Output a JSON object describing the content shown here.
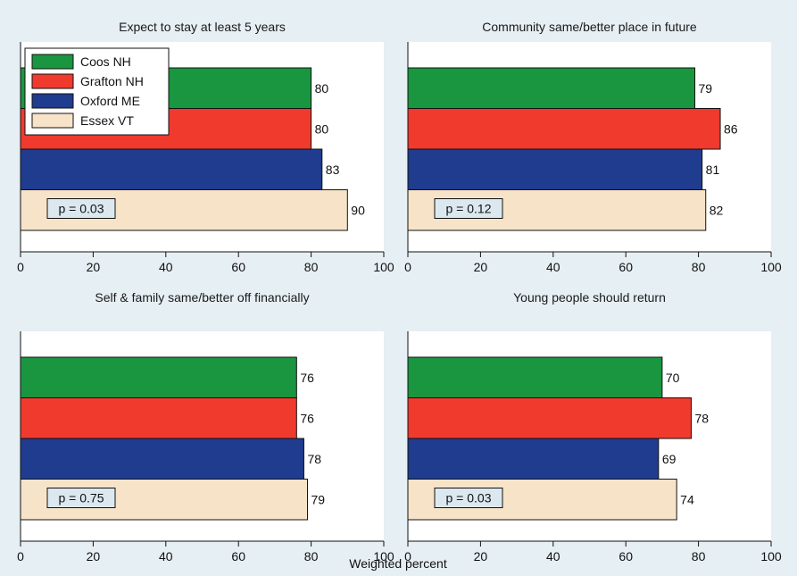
{
  "colors": {
    "background": "#e6eff3",
    "plot_bg": "#ffffff",
    "series": [
      "#1a9641",
      "#f03a2e",
      "#1f3c8f",
      "#f7e4c8"
    ],
    "pbox": "#dbe8ef"
  },
  "xlabel": "Weighted percent",
  "legend": {
    "placement": "top-left (first panel)",
    "entries": [
      "Coos NH",
      "Grafton NH",
      "Oxford ME",
      "Essex VT"
    ]
  },
  "chart_data": [
    {
      "type": "bar",
      "orientation": "horizontal",
      "title": "Expect to stay at least 5 years",
      "categories": [
        "Coos NH",
        "Grafton NH",
        "Oxford ME",
        "Essex VT"
      ],
      "values": [
        80,
        80,
        83,
        90
      ],
      "annotation": "p = 0.03",
      "xlim": [
        0,
        100
      ],
      "xticks": [
        "0",
        "20",
        "40",
        "60",
        "80",
        "100"
      ],
      "grid": false
    },
    {
      "type": "bar",
      "orientation": "horizontal",
      "title": "Community same/better place in future",
      "categories": [
        "Coos NH",
        "Grafton NH",
        "Oxford ME",
        "Essex VT"
      ],
      "values": [
        79,
        86,
        81,
        82
      ],
      "annotation": "p = 0.12",
      "xlim": [
        0,
        100
      ],
      "xticks": [
        "0",
        "20",
        "40",
        "60",
        "80",
        "100"
      ],
      "grid": false
    },
    {
      "type": "bar",
      "orientation": "horizontal",
      "title": "Self & family same/better off financially",
      "categories": [
        "Coos NH",
        "Grafton NH",
        "Oxford ME",
        "Essex VT"
      ],
      "values": [
        76,
        76,
        78,
        79
      ],
      "annotation": "p = 0.75",
      "xlim": [
        0,
        100
      ],
      "xticks": [
        "0",
        "20",
        "40",
        "60",
        "80",
        "100"
      ],
      "grid": false
    },
    {
      "type": "bar",
      "orientation": "horizontal",
      "title": "Young people should return",
      "categories": [
        "Coos NH",
        "Grafton NH",
        "Oxford ME",
        "Essex VT"
      ],
      "values": [
        70,
        78,
        69,
        74
      ],
      "annotation": "p = 0.03",
      "xlim": [
        0,
        100
      ],
      "xticks": [
        "0",
        "20",
        "40",
        "60",
        "80",
        "100"
      ],
      "grid": false
    }
  ]
}
